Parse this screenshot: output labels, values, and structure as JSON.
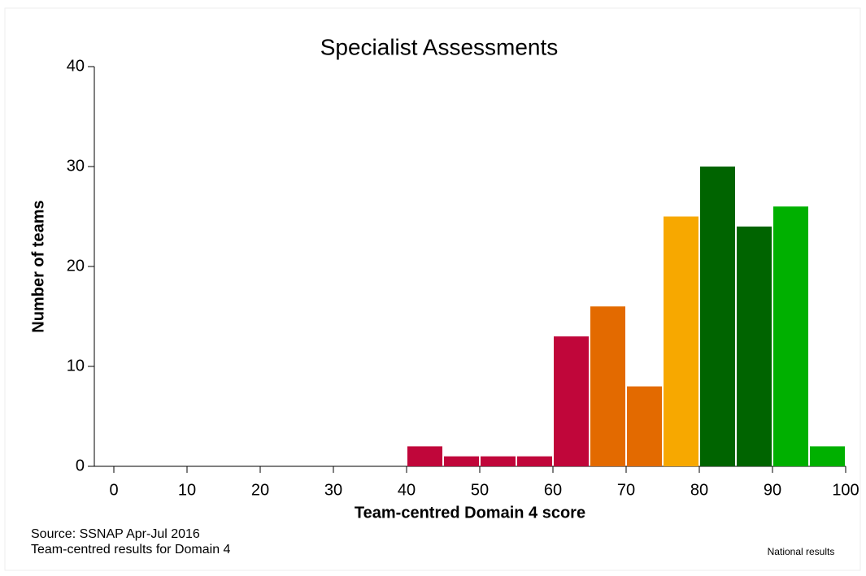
{
  "chart_data": {
    "type": "histogram",
    "title": "Specialist Assessments",
    "xlabel": "Team-centred Domain 4 score",
    "ylabel": "Number of teams",
    "bins": [
      0,
      5,
      10,
      15,
      20,
      25,
      30,
      35,
      40,
      45,
      50,
      55,
      60,
      65,
      70,
      75,
      80,
      85,
      90,
      95,
      100
    ],
    "values": [
      0,
      0,
      0,
      0,
      0,
      0,
      0,
      0,
      2,
      1,
      1,
      1,
      13,
      16,
      8,
      25,
      30,
      24,
      26,
      2
    ],
    "colors": [
      "#c0063a",
      "#c0063a",
      "#c0063a",
      "#c0063a",
      "#c0063a",
      "#c0063a",
      "#c0063a",
      "#c0063a",
      "#c0063a",
      "#c0063a",
      "#c0063a",
      "#c0063a",
      "#c0063a",
      "#e36a00",
      "#e36a00",
      "#f7a800",
      "#006400",
      "#006400",
      "#00b000",
      "#00b000"
    ],
    "xlim": [
      0,
      100
    ],
    "xticks": [
      0,
      10,
      20,
      30,
      40,
      50,
      60,
      70,
      80,
      90,
      100
    ],
    "ylim": [
      0,
      40
    ],
    "yticks": [
      0,
      10,
      20,
      30,
      40
    ],
    "notes": [
      "Source: SSNAP Apr-Jul 2016",
      "Team-centred results for Domain 4"
    ],
    "corner_note": "National results"
  }
}
